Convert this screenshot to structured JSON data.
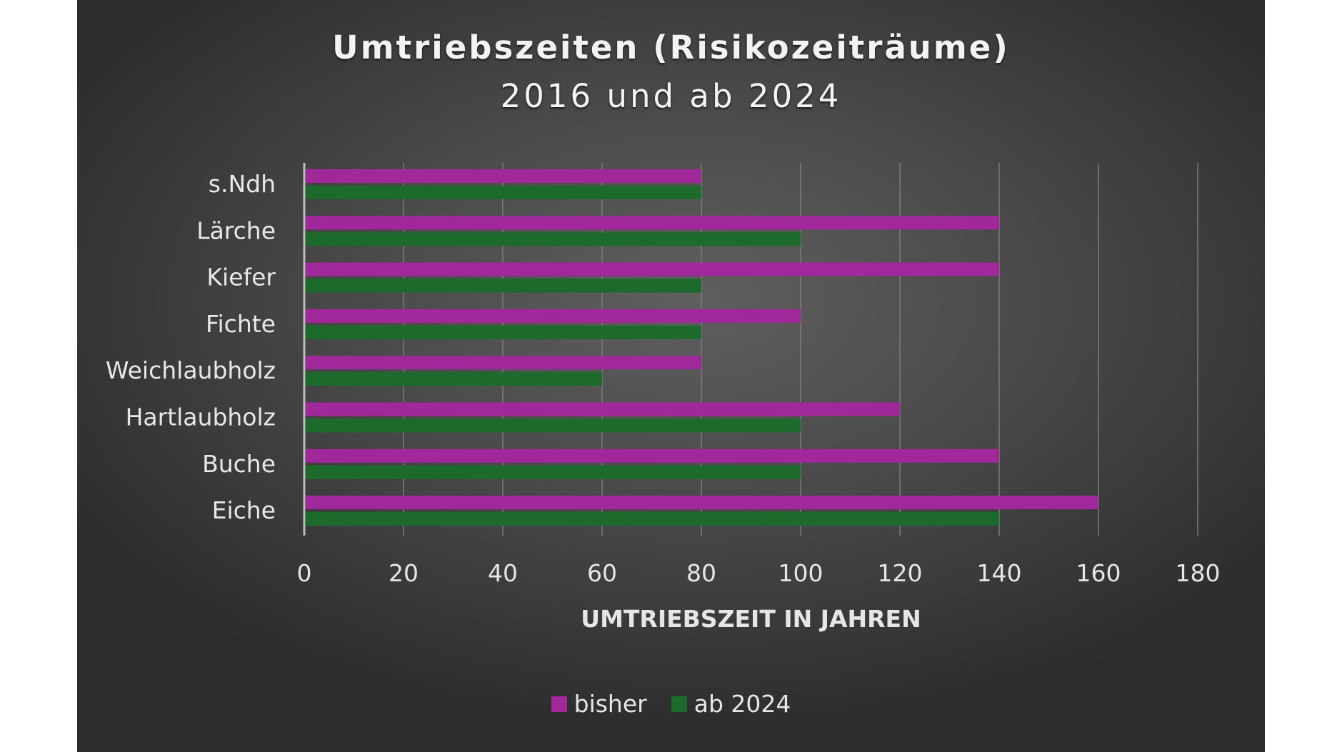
{
  "chart_data": {
    "type": "bar",
    "orientation": "horizontal",
    "title": "Umtriebszeiten (Risikozeiträume)",
    "subtitle": "2016 und ab 2024",
    "xlabel": "UMTRIEBSZEIT IN JAHREN",
    "ylabel": "",
    "xlim": [
      0,
      180
    ],
    "xticks": [
      0,
      20,
      40,
      60,
      80,
      100,
      120,
      140,
      160,
      180
    ],
    "categories": [
      "s.Ndh",
      "Lärche",
      "Kiefer",
      "Fichte",
      "Weichlaubholz",
      "Hartlaubholz",
      "Buche",
      "Eiche"
    ],
    "series": [
      {
        "name": "bisher",
        "color": "#a0289a",
        "values": [
          80,
          140,
          140,
          100,
          80,
          120,
          140,
          160
        ]
      },
      {
        "name": "ab 2024",
        "color": "#1d6b2c",
        "values": [
          80,
          100,
          80,
          80,
          60,
          100,
          100,
          140
        ]
      }
    ],
    "grid": true,
    "legend_position": "bottom"
  }
}
